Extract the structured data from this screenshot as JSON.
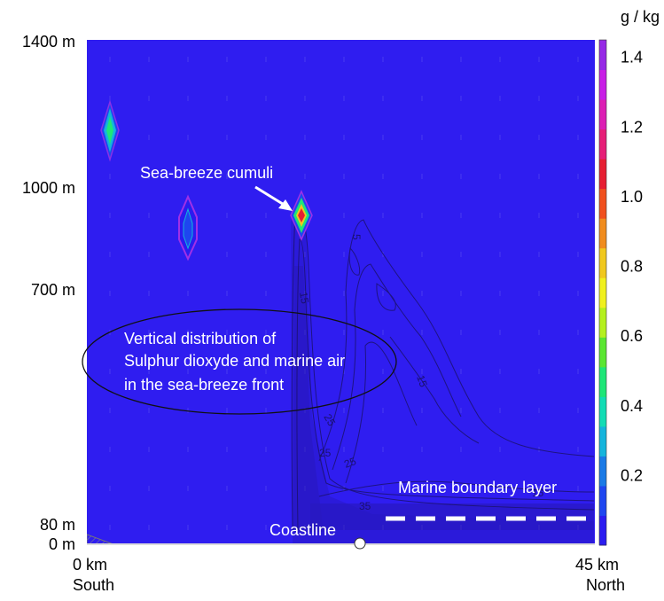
{
  "chart_data": {
    "type": "heatmap",
    "field": "cloud water mixing ratio",
    "colorbar": {
      "unit": "g / kg",
      "ticks": [
        0.2,
        0.4,
        0.6,
        0.8,
        1.0,
        1.2,
        1.4
      ],
      "tick_labels": [
        "0.2",
        "0.4",
        "0.6",
        "0.8",
        "1.0",
        "1.2",
        "1.4"
      ],
      "range": [
        0,
        1.45
      ],
      "colors": [
        "#2a1cf0",
        "#1e46f0",
        "#1a7ae6",
        "#14b4dc",
        "#12dcb4",
        "#1ee678",
        "#5ae632",
        "#b4f01e",
        "#f0f01e",
        "#f0c81e",
        "#f08c1e",
        "#f0501e",
        "#e61e32",
        "#e61e78",
        "#dc1eb4",
        "#c81ee6",
        "#9628e6"
      ]
    },
    "x_axis": {
      "range_km": [
        0,
        45
      ],
      "tick_labels": [
        "0 km",
        "45 km"
      ],
      "end_labels": [
        "South",
        "North"
      ]
    },
    "y_axis": {
      "unit": "m",
      "tick_values": [
        0,
        80,
        700,
        1000,
        1400
      ],
      "tick_labels": [
        "0 m",
        "80 m",
        "700 m",
        "1000 m",
        "1400 m"
      ]
    },
    "background_color": "#2f1df0",
    "cloud_features": [
      {
        "x_km": 2.0,
        "z_m": 1170,
        "peak_g_kg": 0.65
      },
      {
        "x_km": 9.0,
        "z_m": 880,
        "peak_g_kg": 0.3
      },
      {
        "x_km": 19.0,
        "z_m": 930,
        "peak_g_kg": 1.1
      }
    ],
    "contour_labels": [
      "5",
      "15",
      "15",
      "25",
      "25",
      "25",
      "35",
      "15"
    ],
    "annotations": {
      "cumuli": "Sea-breeze cumuli",
      "so2_line1": "Vertical distribution of",
      "so2_line2": "Sulphur dioxyde and marine air",
      "so2_line3": "in the sea-breeze front",
      "mbl": "Marine boundary layer",
      "coastline": "Coastline"
    },
    "coastline_x_km": 24.0,
    "marine_boundary_layer_top_m": 80
  }
}
